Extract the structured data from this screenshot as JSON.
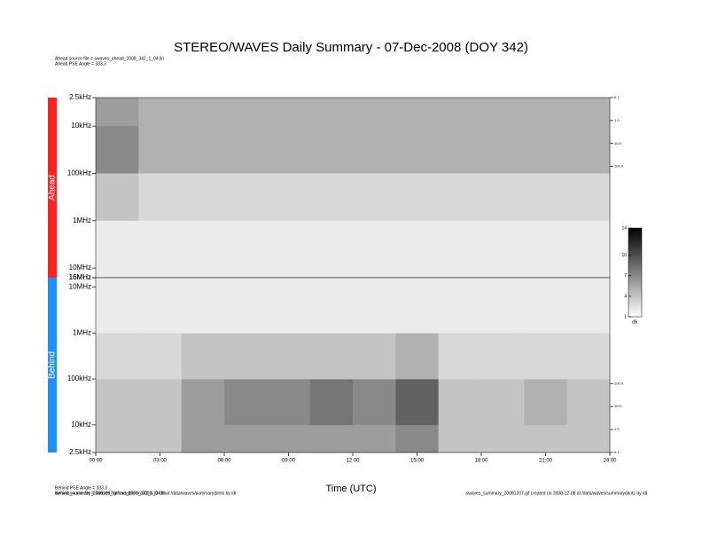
{
  "chart_data": {
    "type": "spectrogram",
    "title": "STEREO/WAVES Daily Summary - 07-Dec-2008 (DOY 342)",
    "header_lines": [
      "Ahead source file = swaves_ahead_2008_342_1_04.lin",
      "Ahead PSE Angle = 333.3"
    ],
    "footer_left": [
      "Behind PSE Angle = 333.3",
      "Behind source file = swaves_behind_2008_342_1_04.lin"
    ],
    "footer_right": "swaves_summary_20081207.gif created on 2008-12-08 at /data/waves/summary/plots by idl",
    "xlabel": "Time (UTC)",
    "xlim": [
      0,
      24
    ],
    "xticks": [
      {
        "value": 0,
        "label": "00:00"
      },
      {
        "value": 3,
        "label": "03:00"
      },
      {
        "value": 6,
        "label": "06:00"
      },
      {
        "value": 9,
        "label": "09:00"
      },
      {
        "value": 12,
        "label": "12:00"
      },
      {
        "value": 15,
        "label": "15:00"
      },
      {
        "value": 18,
        "label": "18:00"
      },
      {
        "value": 21,
        "label": "21:00"
      },
      {
        "value": 24,
        "label": "24:00"
      }
    ],
    "log_scale": true,
    "colormap": [
      "#ffffff",
      "#000000"
    ],
    "colorbar": {
      "label": "dB",
      "lim": [
        1,
        14
      ],
      "ticks": [
        1,
        4,
        7,
        10,
        14
      ]
    },
    "time_bins": [
      0,
      2,
      4,
      6,
      8,
      10,
      12,
      14,
      16,
      18,
      20,
      22,
      24
    ],
    "freq_bins": [
      2500,
      10000,
      100000,
      1000000,
      10000000,
      16000000
    ],
    "panels": [
      {
        "name": "Ahead",
        "color": "#ff2020",
        "ylim": [
          16000000,
          2500
        ],
        "yticks": [
          {
            "value": 2500,
            "label": "2.5kHz"
          },
          {
            "value": 10000,
            "label": "10kHz"
          },
          {
            "value": 100000,
            "label": "100kHz"
          },
          {
            "value": 1000000,
            "label": "1MHz"
          },
          {
            "value": 10000000,
            "label": "10MHz"
          },
          {
            "value": 16000000,
            "label": "16MHz"
          }
        ],
        "y2lim": [
          7000000,
          0.1
        ],
        "y2ticks": [
          0.1,
          {
            "value": 1,
            "label": "1.0"
          },
          {
            "value": 10,
            "label": "10.0"
          },
          {
            "value": 100,
            "label": "100.0"
          }
        ],
        "values": [
          [
            6,
            5,
            5,
            5,
            5,
            5,
            5,
            5,
            5,
            5,
            5,
            5
          ],
          [
            7,
            5,
            5,
            5,
            5,
            5,
            5,
            5,
            5,
            5,
            5,
            5
          ],
          [
            4,
            3,
            3,
            3,
            3,
            3,
            3,
            3,
            3,
            3,
            3,
            3
          ],
          [
            2,
            2,
            2,
            2,
            2,
            2,
            2,
            2,
            2,
            2,
            2,
            2
          ],
          [
            2,
            2,
            2,
            2,
            2,
            2,
            2,
            2,
            2,
            2,
            2,
            2
          ]
        ]
      },
      {
        "name": "Behind",
        "color": "#1e8fff",
        "ylim": [
          2500,
          16000000
        ],
        "yticks": [
          {
            "value": 2500,
            "label": "2.5kHz"
          },
          {
            "value": 10000,
            "label": "10kHz"
          },
          {
            "value": 100000,
            "label": "100kHz"
          },
          {
            "value": 1000000,
            "label": "1MHz"
          },
          {
            "value": 10000000,
            "label": "10MHz"
          },
          {
            "value": 16000000,
            "label": "16MHz"
          }
        ],
        "y2lim": [
          0.1,
          4000000
        ],
        "y2ticks": [
          0.1,
          {
            "value": 1,
            "label": "1.0"
          },
          {
            "value": 10,
            "label": "10.0"
          },
          {
            "value": 100,
            "label": "100.0"
          }
        ],
        "values": [
          [
            4,
            4,
            6,
            6,
            6,
            6,
            6,
            7,
            4,
            4,
            4,
            4
          ],
          [
            4,
            4,
            6,
            7,
            7,
            8,
            7,
            9,
            4,
            4,
            5,
            4
          ],
          [
            3,
            3,
            4,
            4,
            4,
            4,
            4,
            5,
            3,
            3,
            3,
            3
          ],
          [
            2,
            2,
            2,
            2,
            2,
            2,
            2,
            2,
            2,
            2,
            2,
            2
          ],
          [
            2,
            2,
            2,
            2,
            2,
            2,
            2,
            2,
            2,
            2,
            2,
            2
          ]
        ]
      }
    ]
  }
}
